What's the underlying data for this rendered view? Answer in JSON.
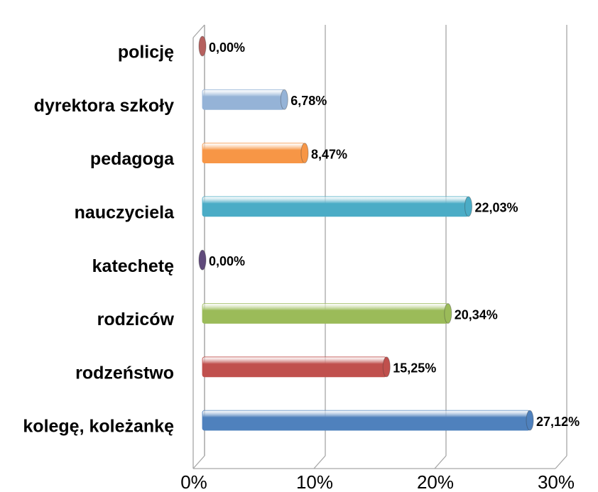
{
  "chart_data": {
    "type": "bar",
    "orientation": "horizontal",
    "categories": [
      "policję",
      "dyrektora szkoły",
      "pedagoga",
      "nauczyciela",
      "katechetę",
      "rodziców",
      "rodzeństwo",
      "kolegę, koleżankę"
    ],
    "values": [
      0,
      6.78,
      8.47,
      22.03,
      0,
      20.34,
      15.25,
      27.12
    ],
    "value_labels": [
      "0,00%",
      "6,78%",
      "8,47%",
      "22,03%",
      "0,00%",
      "20,34%",
      "15,25%",
      "27,12%"
    ],
    "colors": [
      "#b5605e",
      "#95b3d7",
      "#f79646",
      "#4bacc6",
      "#604a7b",
      "#9bbb59",
      "#c0504d",
      "#4f81bd"
    ],
    "xlim": [
      0,
      30
    ],
    "xticks": [
      {
        "value": 0,
        "label": "0%"
      },
      {
        "value": 10,
        "label": "10%"
      },
      {
        "value": 20,
        "label": "20%"
      },
      {
        "value": 30,
        "label": "30%"
      }
    ],
    "grid": true
  }
}
